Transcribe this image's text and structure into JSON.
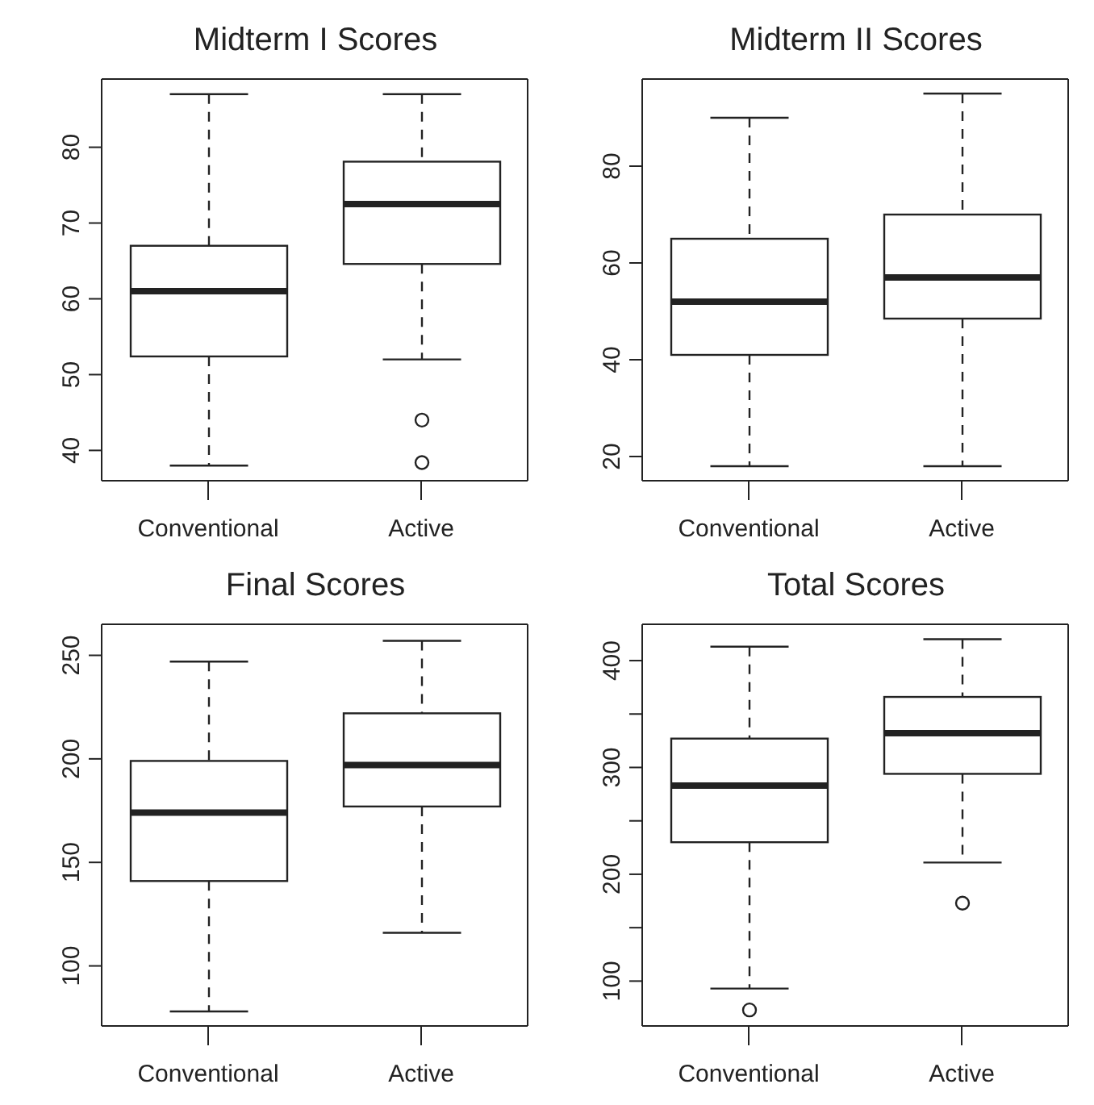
{
  "chart_data": [
    {
      "type": "box",
      "title": "Midterm I Scores",
      "categories": [
        "Conventional",
        "Active"
      ],
      "ylim": [
        36,
        89
      ],
      "yticks": [
        40,
        50,
        60,
        70,
        80
      ],
      "boxes": [
        {
          "low": 38,
          "q1": 52.4,
          "median": 61,
          "q3": 67,
          "high": 87
        },
        {
          "low": 52,
          "q1": 64.6,
          "median": 72.5,
          "q3": 78.1,
          "high": 87,
          "outliers": [
            44,
            38.4
          ]
        }
      ]
    },
    {
      "type": "box",
      "title": "Midterm II Scores",
      "categories": [
        "Conventional",
        "Active"
      ],
      "ylim": [
        15,
        98
      ],
      "yticks": [
        20,
        40,
        60,
        80
      ],
      "boxes": [
        {
          "low": 18,
          "q1": 41,
          "median": 52,
          "q3": 65,
          "high": 90
        },
        {
          "low": 18,
          "q1": 48.5,
          "median": 57,
          "q3": 70,
          "high": 95
        }
      ]
    },
    {
      "type": "box",
      "title": "Final Scores",
      "categories": [
        "Conventional",
        "Active"
      ],
      "ylim": [
        71,
        265
      ],
      "yticks": [
        100,
        150,
        200,
        250
      ],
      "boxes": [
        {
          "low": 78,
          "q1": 141,
          "median": 174,
          "q3": 199,
          "high": 247
        },
        {
          "low": 116,
          "q1": 177,
          "median": 197,
          "q3": 222,
          "high": 257
        }
      ]
    },
    {
      "type": "box",
      "title": "Total Scores",
      "categories": [
        "Conventional",
        "Active"
      ],
      "ylim": [
        58,
        434
      ],
      "yticks": [
        100,
        {
          "value": 150,
          "label": null
        },
        200,
        {
          "value": 250,
          "label": null
        },
        300,
        {
          "value": 350,
          "label": null
        },
        400
      ],
      "boxes": [
        {
          "low": 93,
          "q1": 230,
          "median": 283,
          "q3": 327,
          "high": 413,
          "outliers": [
            73
          ]
        },
        {
          "low": 211,
          "q1": 294,
          "median": 332,
          "q3": 366,
          "high": 420,
          "outliers": [
            173
          ]
        }
      ]
    }
  ]
}
